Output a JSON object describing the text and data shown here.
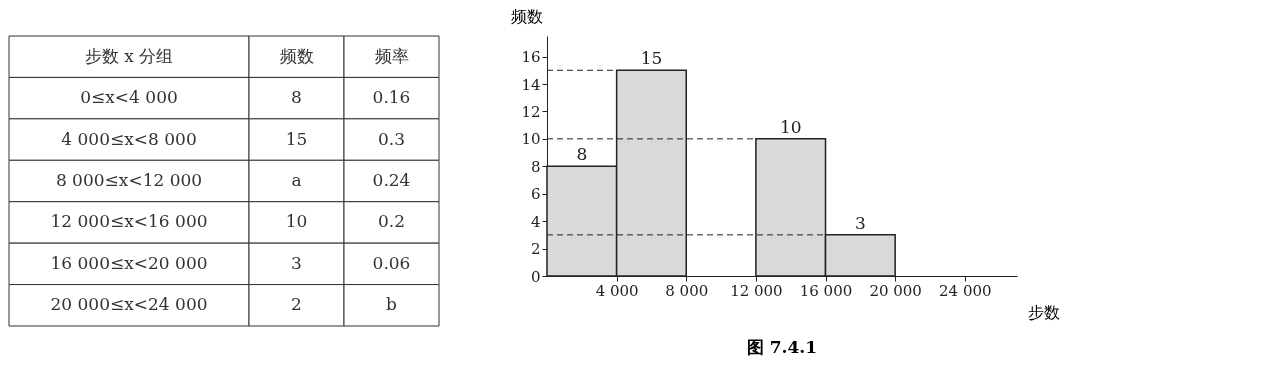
{
  "chart_data": [
    {
      "type": "other",
      "annotations": [
        "步数 x 分组",
        "频数",
        "频率",
        "0≤x<4 000",
        "8",
        "0.16",
        "4 000≤x<8 000",
        "15",
        "0.3",
        "8 000≤x<12 000",
        "a",
        "0.24",
        "12 000≤x<16 000",
        "10",
        "0.2",
        "16 000≤x<20 000",
        "3",
        "0.06",
        "20 000≤x<24 000",
        "2",
        "b"
      ]
    },
    {
      "type": "histogram",
      "bins": [
        0,
        4000,
        8000,
        12000,
        16000,
        20000,
        24000
      ],
      "values": [
        8,
        15,
        null,
        10,
        3,
        null
      ],
      "color": "#d9d9d9",
      "data_labels": true,
      "xlabel": "步数",
      "ylabel": "频数",
      "xlim": [
        0,
        27000
      ],
      "ylim": [
        0,
        17.5
      ],
      "xticks": [
        {
          "value": 4000,
          "label": "4 000"
        },
        {
          "value": 8000,
          "label": "8 000"
        },
        {
          "value": 12000,
          "label": "12 000"
        },
        {
          "value": 16000,
          "label": "16 000"
        },
        {
          "value": 20000,
          "label": "20 000"
        },
        {
          "value": 24000,
          "label": "24 000"
        }
      ],
      "yticks": [
        0,
        2,
        4,
        6,
        8,
        10,
        12,
        14,
        16
      ],
      "ref_lines": [
        {
          "axis": "y",
          "value": 15,
          "line_style": "dashed"
        },
        {
          "axis": "y",
          "value": 10,
          "line_style": "dashed"
        },
        {
          "axis": "y",
          "value": 3,
          "line_style": "dashed"
        }
      ],
      "grid": false,
      "annotations": [
        "图 7.4.1"
      ]
    }
  ]
}
